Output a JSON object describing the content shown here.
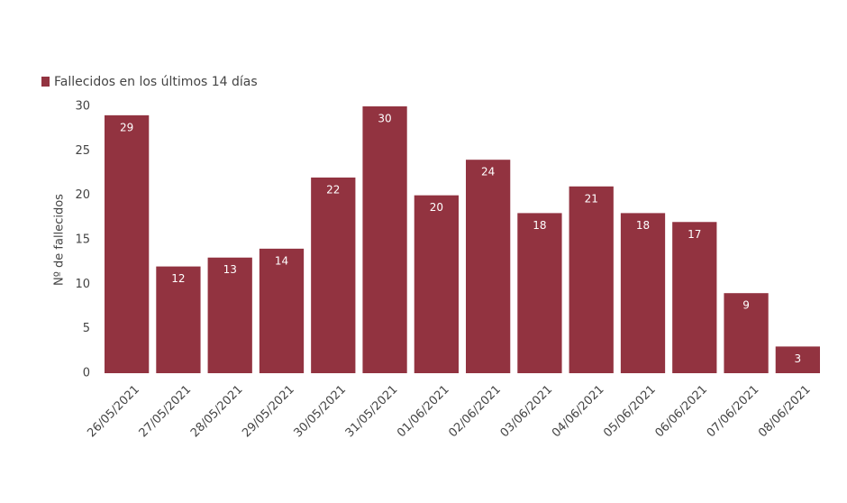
{
  "chart_data": {
    "type": "bar",
    "y_label": "Nº de fallecidos",
    "categories": [
      "26/05/2021",
      "27/05/2021",
      "28/05/2021",
      "29/05/2021",
      "30/05/2021",
      "31/05/2021",
      "01/06/2021",
      "02/06/2021",
      "03/06/2021",
      "04/06/2021",
      "05/06/2021",
      "06/06/2021",
      "07/06/2021",
      "08/06/2021"
    ],
    "series": [
      {
        "name": "Fallecidos en los últimos 14 días",
        "color": "#923340",
        "values": [
          29,
          12,
          13,
          14,
          22,
          30,
          20,
          24,
          18,
          21,
          18,
          17,
          9,
          3
        ]
      }
    ],
    "ylim": [
      0,
      30
    ],
    "yticks": [
      0,
      5,
      10,
      15,
      20,
      25,
      30
    ],
    "grid": false,
    "legend": "top-left"
  }
}
